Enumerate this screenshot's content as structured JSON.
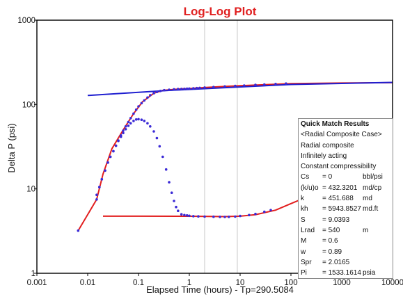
{
  "chart_data": {
    "type": "scatter",
    "title": "Log-Log Plot",
    "xlabel": "Elapsed Time (hours) - Tp=290.5084",
    "ylabel": "Delta P (psi)",
    "x_scale": "log",
    "y_scale": "log",
    "xlim": [
      0.001,
      10000
    ],
    "ylim": [
      1,
      1000
    ],
    "x_tick_labels": [
      "0.001",
      "0.01",
      "0.1",
      "1",
      "10",
      "100",
      "1000",
      "10000"
    ],
    "y_tick_labels": [
      "1",
      "10",
      "100",
      "1000"
    ],
    "vertical_markers": [
      2.0,
      8.8
    ],
    "series": [
      {
        "kind": "measured pressure change (points)",
        "color": "#3b2ad6",
        "x": [
          0.0065,
          0.015,
          0.017,
          0.019,
          0.022,
          0.025,
          0.028,
          0.032,
          0.036,
          0.04,
          0.045,
          0.05,
          0.056,
          0.063,
          0.07,
          0.08,
          0.09,
          0.1,
          0.115,
          0.13,
          0.15,
          0.17,
          0.2,
          0.23,
          0.27,
          0.32,
          0.4,
          0.5,
          0.6,
          0.7,
          0.8,
          0.9,
          1.0,
          1.2,
          1.4,
          1.6,
          2.0,
          3.0,
          5.0,
          8.0,
          12.0,
          20.0,
          30.0,
          50.0,
          80.0
        ],
        "y": [
          3.2,
          7.5,
          10.5,
          13.0,
          16.5,
          20.5,
          24.0,
          28.0,
          32.5,
          37.5,
          43.0,
          49.0,
          55.0,
          62.0,
          69.0,
          78.0,
          87.0,
          95.0,
          104.0,
          112.0,
          121.0,
          129.0,
          136.0,
          141.0,
          145.0,
          148.0,
          150.0,
          151.5,
          152.5,
          153.0,
          153.5,
          154.0,
          154.5,
          155.5,
          156.5,
          157.5,
          159.0,
          161.0,
          164.0,
          166.0,
          168.0,
          171.0,
          173.0,
          175.0,
          177.0
        ]
      },
      {
        "kind": "measured pressure derivative (points)",
        "color": "#3b2ad6",
        "x": [
          0.015,
          0.017,
          0.019,
          0.022,
          0.025,
          0.028,
          0.032,
          0.036,
          0.04,
          0.045,
          0.05,
          0.056,
          0.063,
          0.07,
          0.08,
          0.09,
          0.1,
          0.115,
          0.13,
          0.15,
          0.17,
          0.2,
          0.23,
          0.26,
          0.3,
          0.35,
          0.4,
          0.45,
          0.5,
          0.55,
          0.6,
          0.7,
          0.8,
          0.9,
          1.0,
          1.2,
          1.5,
          2.0,
          3.0,
          4.0,
          5.0,
          6.0,
          8.0,
          10.0,
          15.0,
          20.0,
          30.0,
          40.0
        ],
        "y": [
          8.5,
          10.5,
          13.0,
          16.5,
          20.5,
          24.0,
          28.0,
          32.5,
          37.0,
          41.5,
          46.0,
          51.0,
          56.0,
          60.0,
          64.0,
          66.5,
          67.0,
          66.0,
          64.0,
          60.0,
          55.0,
          48.0,
          40.0,
          32.0,
          24.0,
          17.0,
          12.0,
          9.0,
          7.2,
          6.1,
          5.5,
          5.0,
          4.9,
          4.85,
          4.8,
          4.75,
          4.72,
          4.7,
          4.68,
          4.66,
          4.65,
          4.66,
          4.7,
          4.78,
          4.9,
          5.05,
          5.35,
          5.6
        ]
      },
      {
        "kind": "model pressure change (curve)",
        "color": "#e21e1e",
        "x": [
          0.0065,
          0.015,
          0.02,
          0.03,
          0.05,
          0.08,
          0.12,
          0.2,
          0.3,
          0.5,
          0.7,
          1.0,
          2.0,
          5.0,
          10.0,
          100.0,
          1000.0,
          10000.0
        ],
        "y": [
          3.2,
          7.5,
          15.0,
          30.0,
          50.0,
          78.0,
          108.0,
          136.0,
          147.0,
          151.0,
          153.0,
          154.5,
          159.0,
          164.0,
          167.0,
          177.0,
          180.0,
          181.5
        ]
      },
      {
        "kind": "model pressure derivative (curve)",
        "color": "#e21e1e",
        "x": [
          0.02,
          0.1,
          1.0,
          5.0,
          10.0,
          20.0,
          50.0,
          100.0,
          150.0,
          200.0,
          500.0,
          1000.0,
          10000.0
        ],
        "y": [
          4.75,
          4.75,
          4.74,
          4.7,
          4.75,
          4.95,
          5.6,
          6.7,
          7.4,
          7.7,
          7.9,
          8.0,
          8.0
        ]
      },
      {
        "kind": "straight reference line",
        "color": "#1f1fd0",
        "x": [
          0.01,
          0.4,
          100.0,
          10000.0
        ],
        "y": [
          128.0,
          147.0,
          173.0,
          183.0
        ]
      }
    ]
  },
  "legend": {
    "title": "Quick Match Results",
    "lines": [
      "<Radial Composite Case>",
      "Radial composite",
      "Infinitely acting",
      "Constant compressibility"
    ],
    "params": [
      {
        "name": "Cs",
        "value": "= 0",
        "unit": "bbl/psi"
      },
      {
        "name": "(k/u)o",
        "value": "= 432.3201",
        "unit": "md/cp"
      },
      {
        "name": "k",
        "value": "= 451.688",
        "unit": "md"
      },
      {
        "name": "kh",
        "value": "= 5943.8527",
        "unit": "md.ft"
      },
      {
        "name": "S",
        "value": "= 9.0393",
        "unit": ""
      },
      {
        "name": "Lrad",
        "value": "= 540",
        "unit": "m"
      },
      {
        "name": "M",
        "value": "= 0.6",
        "unit": ""
      },
      {
        "name": "w",
        "value": "= 0.89",
        "unit": ""
      },
      {
        "name": "Spr",
        "value": "= 2.0165",
        "unit": ""
      },
      {
        "name": "Pi",
        "value": "= 1533.1614",
        "unit": "psia"
      }
    ]
  },
  "colors": {
    "measured": "#3b2ad6",
    "model": "#e21e1e",
    "line": "#1f1fd0",
    "marker": "#c8c8c8"
  }
}
